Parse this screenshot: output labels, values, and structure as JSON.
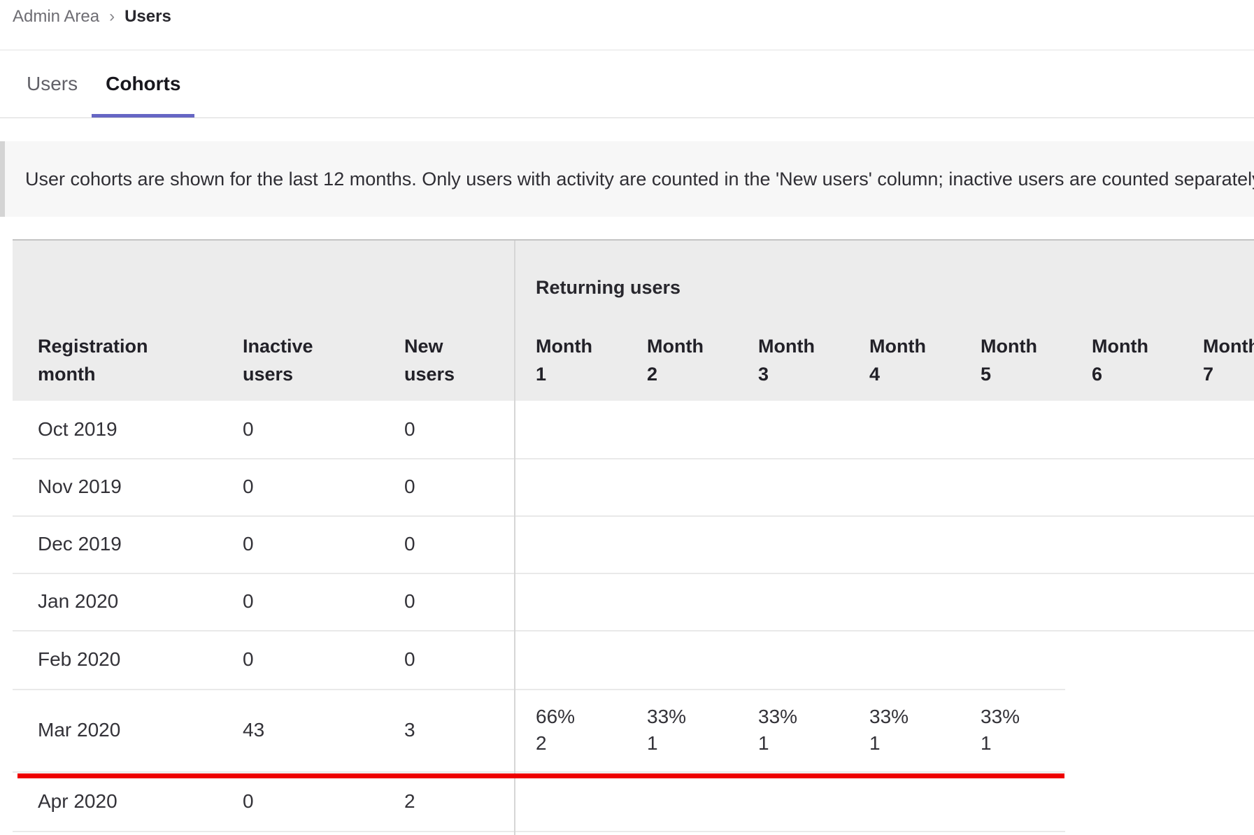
{
  "breadcrumb": {
    "separator": "›",
    "crumbs": [
      {
        "label": "Admin Area"
      },
      {
        "label": "Users"
      }
    ]
  },
  "tabs": {
    "items": [
      {
        "label": "Users",
        "active": false
      },
      {
        "label": "Cohorts",
        "active": true
      }
    ]
  },
  "banner": {
    "text": "User cohorts are shown for the last 12 months. Only users with activity are counted in the 'New users' column; inactive users are counted separately."
  },
  "cohorts_table": {
    "group_header": "Returning users",
    "headers": {
      "registration": [
        "Registration",
        "month"
      ],
      "inactive": [
        "Inactive",
        "users"
      ],
      "new": [
        "New",
        "users"
      ],
      "months": [
        [
          "Month",
          "1"
        ],
        [
          "Month",
          "2"
        ],
        [
          "Month",
          "3"
        ],
        [
          "Month",
          "4"
        ],
        [
          "Month",
          "5"
        ],
        [
          "Month",
          "6"
        ],
        [
          "Month",
          "7"
        ]
      ]
    },
    "rows": [
      {
        "registration_month": "Oct 2019",
        "inactive_users": "0",
        "new_users": "0",
        "returning": []
      },
      {
        "registration_month": "Nov 2019",
        "inactive_users": "0",
        "new_users": "0",
        "returning": []
      },
      {
        "registration_month": "Dec 2019",
        "inactive_users": "0",
        "new_users": "0",
        "returning": []
      },
      {
        "registration_month": "Jan 2020",
        "inactive_users": "0",
        "new_users": "0",
        "returning": []
      },
      {
        "registration_month": "Feb 2020",
        "inactive_users": "0",
        "new_users": "0",
        "returning": []
      },
      {
        "registration_month": "Mar 2020",
        "inactive_users": "43",
        "new_users": "3",
        "highlighted": true,
        "returning": [
          {
            "percent": "66%",
            "count": "2"
          },
          {
            "percent": "33%",
            "count": "1"
          },
          {
            "percent": "33%",
            "count": "1"
          },
          {
            "percent": "33%",
            "count": "1"
          },
          {
            "percent": "33%",
            "count": "1"
          }
        ]
      },
      {
        "registration_month": "Apr 2020",
        "inactive_users": "0",
        "new_users": "2",
        "returning": []
      }
    ]
  },
  "annotation": {
    "type": "red-underline",
    "color": "#ee0000"
  },
  "colors": {
    "accent": "#6666c4",
    "header_bg": "#ececec",
    "banner_bg": "#f7f7f7",
    "highlight": "#ee0000"
  }
}
